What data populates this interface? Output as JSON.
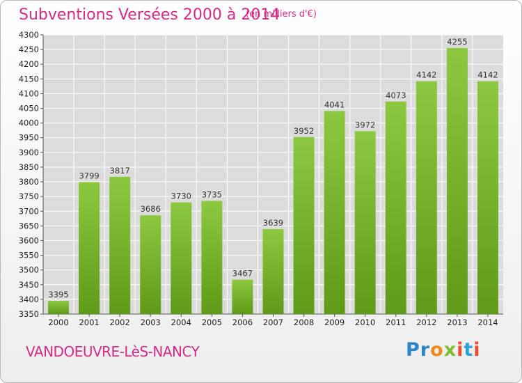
{
  "header": {
    "title": "Subventions Versées 2000 à 2014",
    "subtitle": "(en milliers d'€)"
  },
  "footer": {
    "city": "VANDOEUVRE-LèS-NANCY",
    "logo_text": "Proxiti"
  },
  "colors": {
    "bar_top": "#8cc83f",
    "bar_bottom": "#5f9a18",
    "title": "#d42b86",
    "grid": "#ffffff",
    "plot_bg": "#dcdcdc"
  },
  "chart_data": {
    "type": "bar",
    "title": "Subventions Versées 2000 à 2014",
    "subtitle": "(en milliers d'€)",
    "xlabel": "",
    "ylabel": "",
    "categories": [
      "2000",
      "2001",
      "2002",
      "2003",
      "2004",
      "2005",
      "2006",
      "2007",
      "2008",
      "2009",
      "2010",
      "2011",
      "2012",
      "2013",
      "2014"
    ],
    "values": [
      3395,
      3799,
      3817,
      3686,
      3730,
      3735,
      3467,
      3639,
      3952,
      4041,
      3972,
      4073,
      4142,
      4255,
      4142
    ],
    "ylim": [
      3350,
      4300
    ],
    "yticks": [
      3350,
      3400,
      3450,
      3500,
      3550,
      3600,
      3650,
      3700,
      3750,
      3800,
      3850,
      3900,
      3950,
      4000,
      4050,
      4100,
      4150,
      4200,
      4250,
      4300
    ],
    "grid": true,
    "legend": "none",
    "data_labels": true
  }
}
